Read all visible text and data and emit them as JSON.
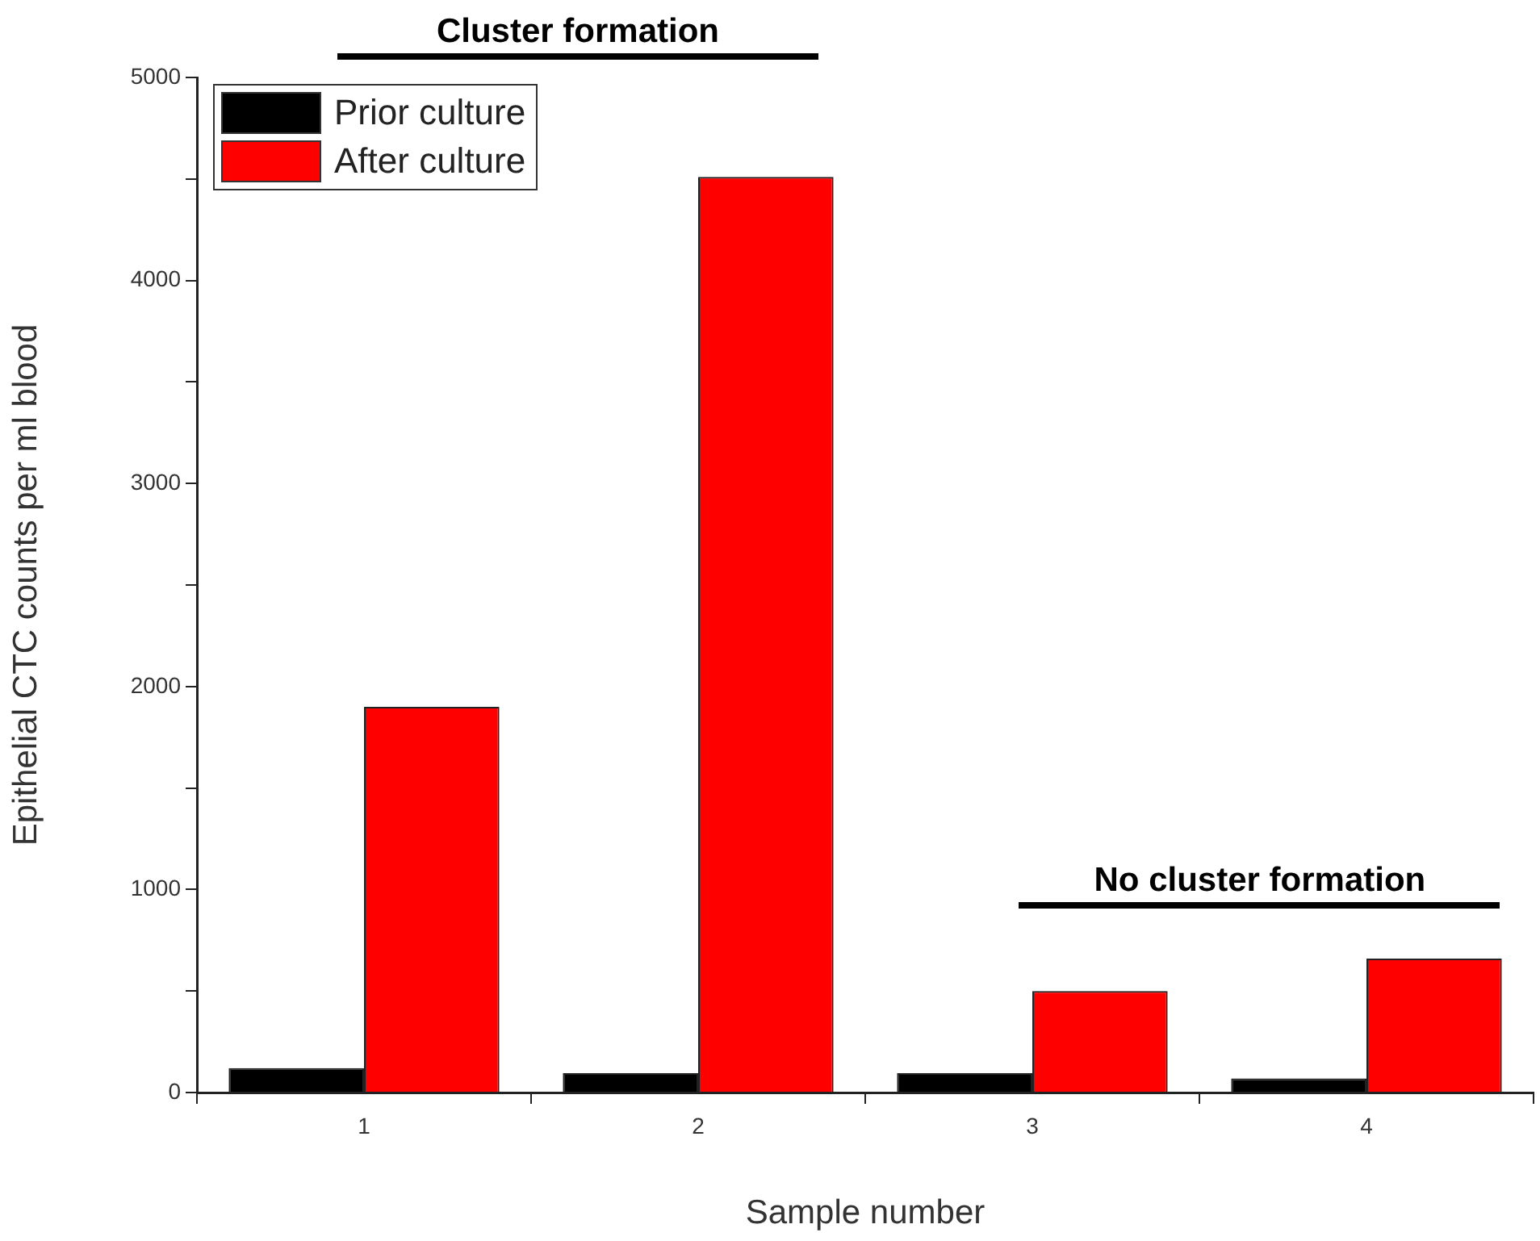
{
  "chart_data": {
    "type": "bar",
    "categories": [
      "1",
      "2",
      "3",
      "4"
    ],
    "series": [
      {
        "name": "Prior culture",
        "color": "#000000",
        "values": [
          120,
          95,
          95,
          70
        ]
      },
      {
        "name": "After culture",
        "color": "#ff0000",
        "values": [
          1900,
          4510,
          500,
          660
        ]
      }
    ],
    "xlabel": "Sample number",
    "ylabel": "Epithelial CTC counts per ml blood",
    "ylim": [
      0,
      5000
    ],
    "yticks": [
      0,
      {
        "value": 500,
        "label": null
      },
      1000,
      {
        "value": 1500,
        "label": null
      },
      2000,
      {
        "value": 2500,
        "label": null
      },
      3000,
      {
        "value": 3500,
        "label": null
      },
      4000,
      {
        "value": 4500,
        "label": null
      },
      5000
    ],
    "annotations": [
      "Cluster formation",
      "No cluster formation"
    ],
    "grid": false,
    "legend": "top left"
  }
}
